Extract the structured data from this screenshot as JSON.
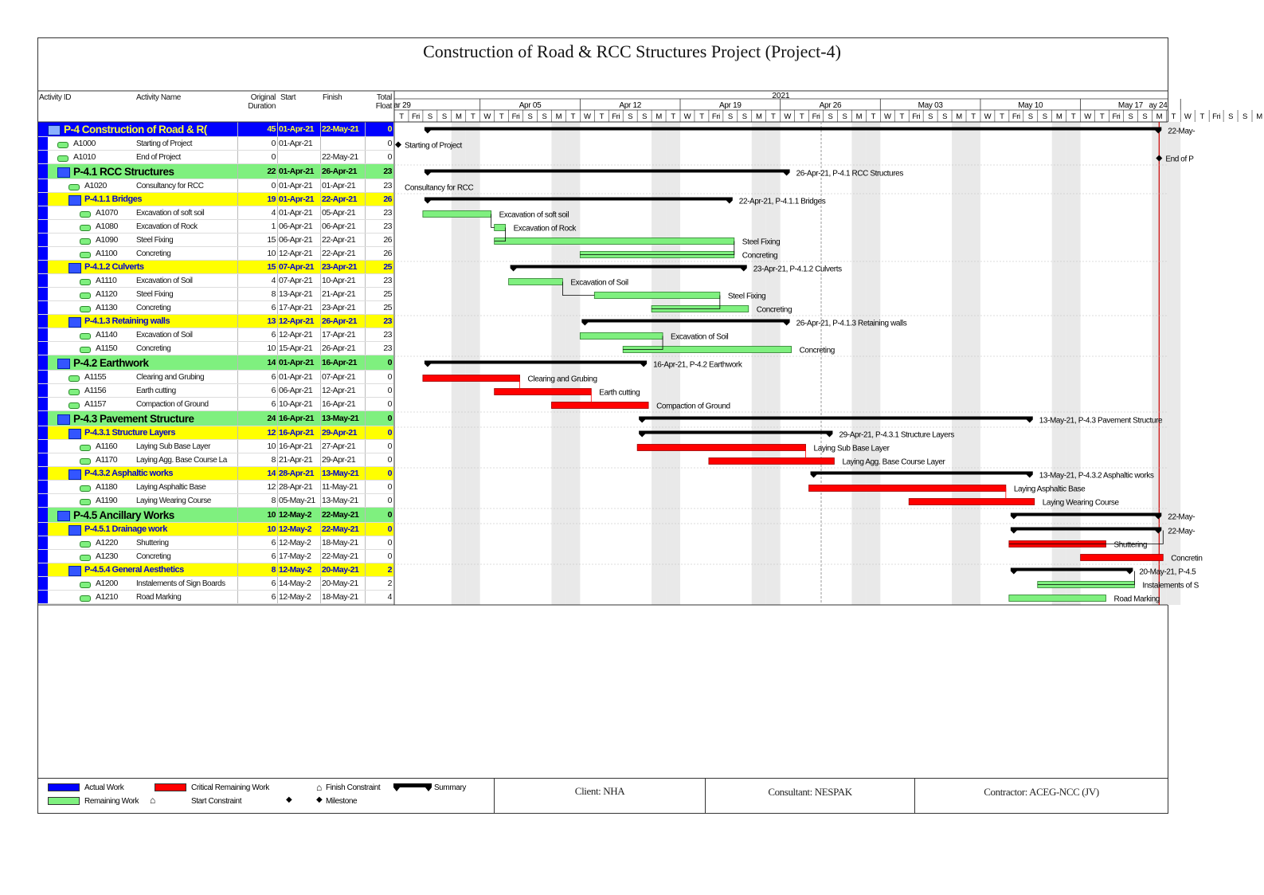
{
  "title": "Construction of Road & RCC Structures Project (Project-4)",
  "columns": {
    "activity_id": "Activity ID",
    "activity_name": "Activity Name",
    "original_duration": [
      "Original",
      "Duration"
    ],
    "start": "Start",
    "finish": "Finish",
    "total_float": [
      "Total",
      "Float"
    ]
  },
  "timescale": {
    "year": "2021",
    "weeks": [
      "ar 29",
      "Apr 05",
      "Apr 12",
      "Apr 19",
      "Apr 26",
      "May 03",
      "May 10",
      "May 17",
      "ay 24"
    ],
    "day_letters": [
      "T",
      "Fri",
      "S",
      "S",
      "M",
      "T",
      "W",
      "T",
      "Fri",
      "S",
      "S",
      "M",
      "T",
      "W",
      "T",
      "Fri",
      "S",
      "S",
      "M",
      "T",
      "W",
      "T",
      "Fri",
      "S",
      "S",
      "M",
      "T",
      "W",
      "T",
      "Fri",
      "S",
      "S",
      "M",
      "T",
      "W",
      "T",
      "Fri",
      "S",
      "S",
      "M",
      "T",
      "W",
      "T",
      "Fri",
      "S",
      "S",
      "M",
      "T",
      "W",
      "T",
      "Fri",
      "S",
      "S",
      "M",
      "T",
      "W",
      "T",
      "Fri",
      "S",
      "S",
      "M"
    ]
  },
  "chart_data": {
    "type": "gantt",
    "title": "Construction of Road & RCC Structures Project (Project-4)",
    "x_range": [
      "2021-03-30",
      "2021-05-24"
    ],
    "rows": [
      {
        "kind": "top",
        "id": "P-4",
        "name": "Construction of Road & R(",
        "dur": "45",
        "start": "01-Apr-21",
        "finish": "22-May-21",
        "float": "0",
        "s": "2021-04-01",
        "f": "2021-05-22",
        "bar": "summary",
        "label": "22-May-"
      },
      {
        "kind": "act",
        "id": "A1000",
        "name": "Starting of Project",
        "dur": "0",
        "start": "01-Apr-21",
        "finish": "",
        "float": "0",
        "s": "2021-04-01",
        "f": "2021-04-01",
        "bar": "milestone",
        "label": "Starting of Project"
      },
      {
        "kind": "act",
        "id": "A1010",
        "name": "End of Project",
        "dur": "0",
        "start": "",
        "finish": "22-May-21",
        "float": "0",
        "s": "2021-05-22",
        "f": "2021-05-22",
        "bar": "milestone",
        "label": "End of P"
      },
      {
        "kind": "wbs1",
        "id": "P-4.1",
        "name": "RCC Structures",
        "dur": "22",
        "start": "01-Apr-21",
        "finish": "26-Apr-21",
        "float": "23",
        "s": "2021-04-01",
        "f": "2021-04-26",
        "bar": "summary",
        "label": "26-Apr-21, P-4.1  RCC Structures"
      },
      {
        "kind": "act",
        "id": "A1020",
        "name": "Consultancy for RCC",
        "dur": "0",
        "start": "01-Apr-21",
        "finish": "01-Apr-21",
        "float": "23",
        "s": "2021-04-01",
        "f": "2021-04-01",
        "bar": "none",
        "label": "Consultancy for RCC"
      },
      {
        "kind": "wbs2",
        "id": "P-4.1.1",
        "name": "Bridges",
        "dur": "19",
        "start": "01-Apr-21",
        "finish": "22-Apr-21",
        "float": "26",
        "s": "2021-04-01",
        "f": "2021-04-22",
        "bar": "summary",
        "label": "22-Apr-21, P-4.1.1  Bridges"
      },
      {
        "kind": "act",
        "id": "A1070",
        "name": "Excavation of soft soil",
        "dur": "4",
        "start": "01-Apr-21",
        "finish": "05-Apr-21",
        "float": "23",
        "s": "2021-04-01",
        "f": "2021-04-05",
        "bar": "green",
        "label": "Excavation of soft soil"
      },
      {
        "kind": "act",
        "id": "A1080",
        "name": "Excavation of Rock",
        "dur": "1",
        "start": "06-Apr-21",
        "finish": "06-Apr-21",
        "float": "23",
        "s": "2021-04-06",
        "f": "2021-04-06",
        "bar": "green",
        "label": "Excavation of Rock"
      },
      {
        "kind": "act",
        "id": "A1090",
        "name": "Steel Fixing",
        "dur": "15",
        "start": "06-Apr-21",
        "finish": "22-Apr-21",
        "float": "26",
        "s": "2021-04-06",
        "f": "2021-04-22",
        "bar": "green",
        "label": "Steel Fixing"
      },
      {
        "kind": "act",
        "id": "A1100",
        "name": "Concreting",
        "dur": "10",
        "start": "12-Apr-21",
        "finish": "22-Apr-21",
        "float": "26",
        "s": "2021-04-12",
        "f": "2021-04-22",
        "bar": "green",
        "label": "Concreting"
      },
      {
        "kind": "wbs2",
        "id": "P-4.1.2",
        "name": "Culverts",
        "dur": "15",
        "start": "07-Apr-21",
        "finish": "23-Apr-21",
        "float": "25",
        "s": "2021-04-07",
        "f": "2021-04-23",
        "bar": "summary",
        "label": "23-Apr-21, P-4.1.2  Culverts"
      },
      {
        "kind": "act",
        "id": "A1110",
        "name": "Excavation of Soil",
        "dur": "4",
        "start": "07-Apr-21",
        "finish": "10-Apr-21",
        "float": "23",
        "s": "2021-04-07",
        "f": "2021-04-10",
        "bar": "green",
        "label": "Excavation of Soil"
      },
      {
        "kind": "act",
        "id": "A1120",
        "name": "Steel Fixing",
        "dur": "8",
        "start": "13-Apr-21",
        "finish": "21-Apr-21",
        "float": "25",
        "s": "2021-04-13",
        "f": "2021-04-21",
        "bar": "green",
        "label": "Steel Fixing"
      },
      {
        "kind": "act",
        "id": "A1130",
        "name": "Concreting",
        "dur": "6",
        "start": "17-Apr-21",
        "finish": "23-Apr-21",
        "float": "25",
        "s": "2021-04-17",
        "f": "2021-04-23",
        "bar": "green",
        "label": "Concreting"
      },
      {
        "kind": "wbs2",
        "id": "P-4.1.3",
        "name": "Retaining walls",
        "dur": "13",
        "start": "12-Apr-21",
        "finish": "26-Apr-21",
        "float": "23",
        "s": "2021-04-12",
        "f": "2021-04-26",
        "bar": "summary",
        "label": "26-Apr-21, P-4.1.3  Retaining walls"
      },
      {
        "kind": "act",
        "id": "A1140",
        "name": "Excavation of Soil",
        "dur": "6",
        "start": "12-Apr-21",
        "finish": "17-Apr-21",
        "float": "23",
        "s": "2021-04-12",
        "f": "2021-04-17",
        "bar": "green",
        "label": "Excavation of Soil"
      },
      {
        "kind": "act",
        "id": "A1150",
        "name": "Concreting",
        "dur": "10",
        "start": "15-Apr-21",
        "finish": "26-Apr-21",
        "float": "23",
        "s": "2021-04-15",
        "f": "2021-04-26",
        "bar": "green",
        "label": "Concreting"
      },
      {
        "kind": "wbs1",
        "id": "P-4.2",
        "name": "Earthwork",
        "dur": "14",
        "start": "01-Apr-21",
        "finish": "16-Apr-21",
        "float": "0",
        "s": "2021-04-01",
        "f": "2021-04-16",
        "bar": "summary",
        "label": "16-Apr-21, P-4.2  Earthwork"
      },
      {
        "kind": "act",
        "id": "A1155",
        "name": "Clearing and Grubing",
        "dur": "6",
        "start": "01-Apr-21",
        "finish": "07-Apr-21",
        "float": "0",
        "s": "2021-04-01",
        "f": "2021-04-07",
        "bar": "red",
        "label": "Clearing and Grubing"
      },
      {
        "kind": "act",
        "id": "A1156",
        "name": "Earth cutting",
        "dur": "6",
        "start": "06-Apr-21",
        "finish": "12-Apr-21",
        "float": "0",
        "s": "2021-04-06",
        "f": "2021-04-12",
        "bar": "red",
        "label": "Earth cutting"
      },
      {
        "kind": "act",
        "id": "A1157",
        "name": "Compaction of Ground",
        "dur": "6",
        "start": "10-Apr-21",
        "finish": "16-Apr-21",
        "float": "0",
        "s": "2021-04-10",
        "f": "2021-04-16",
        "bar": "red",
        "label": "Compaction of Ground"
      },
      {
        "kind": "wbs1",
        "id": "P-4.3",
        "name": "Pavement Structure",
        "dur": "24",
        "start": "16-Apr-21",
        "finish": "13-May-21",
        "float": "0",
        "s": "2021-04-16",
        "f": "2021-05-13",
        "bar": "summary",
        "label": "13-May-21, P-4.3  Pavement Structure"
      },
      {
        "kind": "wbs2",
        "id": "P-4.3.1",
        "name": "Structure Layers",
        "dur": "12",
        "start": "16-Apr-21",
        "finish": "29-Apr-21",
        "float": "0",
        "s": "2021-04-16",
        "f": "2021-04-29",
        "bar": "summary",
        "label": "29-Apr-21, P-4.3.1  Structure Layers"
      },
      {
        "kind": "act",
        "id": "A1160",
        "name": "Laying Sub Base Layer",
        "dur": "10",
        "start": "16-Apr-21",
        "finish": "27-Apr-21",
        "float": "0",
        "s": "2021-04-16",
        "f": "2021-04-27",
        "bar": "red",
        "label": "Laying Sub Base Layer"
      },
      {
        "kind": "act",
        "id": "A1170",
        "name": "Laying Agg. Base Course La",
        "dur": "8",
        "start": "21-Apr-21",
        "finish": "29-Apr-21",
        "float": "0",
        "s": "2021-04-21",
        "f": "2021-04-29",
        "bar": "red",
        "label": "Laying Agg. Base Course Layer"
      },
      {
        "kind": "wbs2",
        "id": "P-4.3.2",
        "name": "Asphaltic works",
        "dur": "14",
        "start": "28-Apr-21",
        "finish": "13-May-21",
        "float": "0",
        "s": "2021-04-28",
        "f": "2021-05-13",
        "bar": "summary",
        "label": "13-May-21, P-4.3.2  Asphaltic works"
      },
      {
        "kind": "act",
        "id": "A1180",
        "name": "Laying Asphaltic Base",
        "dur": "12",
        "start": "28-Apr-21",
        "finish": "11-May-21",
        "float": "0",
        "s": "2021-04-28",
        "f": "2021-05-11",
        "bar": "red",
        "label": "Laying Asphaltic Base"
      },
      {
        "kind": "act",
        "id": "A1190",
        "name": "Laying Wearing Course",
        "dur": "8",
        "start": "05-May-21",
        "finish": "13-May-21",
        "float": "0",
        "s": "2021-05-05",
        "f": "2021-05-13",
        "bar": "red",
        "label": "Laying Wearing Course"
      },
      {
        "kind": "wbs1",
        "id": "P-4.5",
        "name": "Ancillary Works",
        "dur": "10",
        "start": "12-May-2",
        "finish": "22-May-21",
        "float": "0",
        "s": "2021-05-12",
        "f": "2021-05-22",
        "bar": "summary",
        "label": "22-May-"
      },
      {
        "kind": "wbs2",
        "id": "P-4.5.1",
        "name": "Drainage work",
        "dur": "10",
        "start": "12-May-2",
        "finish": "22-May-21",
        "float": "0",
        "s": "2021-05-12",
        "f": "2021-05-22",
        "bar": "summary",
        "label": "22-May-"
      },
      {
        "kind": "act",
        "id": "A1220",
        "name": "Shuttering",
        "dur": "6",
        "start": "12-May-2",
        "finish": "18-May-21",
        "float": "0",
        "s": "2021-05-12",
        "f": "2021-05-18",
        "bar": "red",
        "label": "Shuttering"
      },
      {
        "kind": "act",
        "id": "A1230",
        "name": "Concreting",
        "dur": "6",
        "start": "17-May-2",
        "finish": "22-May-21",
        "float": "0",
        "s": "2021-05-17",
        "f": "2021-05-22",
        "bar": "red",
        "label": "Concretin"
      },
      {
        "kind": "wbs2",
        "id": "P-4.5.4",
        "name": "General Aesthetics",
        "dur": "8",
        "start": "12-May-2",
        "finish": "20-May-21",
        "float": "2",
        "s": "2021-05-12",
        "f": "2021-05-20",
        "bar": "summary",
        "label": "20-May-21, P-4.5"
      },
      {
        "kind": "act",
        "id": "A1200",
        "name": "Instalements of Sign Boards",
        "dur": "6",
        "start": "14-May-2",
        "finish": "20-May-21",
        "float": "2",
        "s": "2021-05-14",
        "f": "2021-05-20",
        "bar": "green",
        "label": "Instalements of S"
      },
      {
        "kind": "act",
        "id": "A1210",
        "name": "Road Marking",
        "dur": "6",
        "start": "12-May-2",
        "finish": "18-May-21",
        "float": "4",
        "s": "2021-05-12",
        "f": "2021-05-18",
        "bar": "green",
        "label": "Road Marking"
      }
    ]
  },
  "legend": {
    "actual_work": "Actual Work",
    "remaining_work": "Remaining Work",
    "critical_remaining_work": "Critical Remaining Work",
    "start_constraint": "Start Constraint",
    "finish_constraint": "Finish Constraint",
    "milestone": "Milestone",
    "summary": "Summary"
  },
  "footer": {
    "client": "Client: NHA",
    "consultant": "Consultant: NESPAK",
    "contractor": "Contractor: ACEG-NCC (JV)"
  },
  "colors": {
    "actual": "#0000ff",
    "remaining": "#7ff07f",
    "critical": "#ff0000",
    "wbs1": "#7ff07f",
    "wbs2": "#ffff00",
    "top": "#0000ff"
  }
}
